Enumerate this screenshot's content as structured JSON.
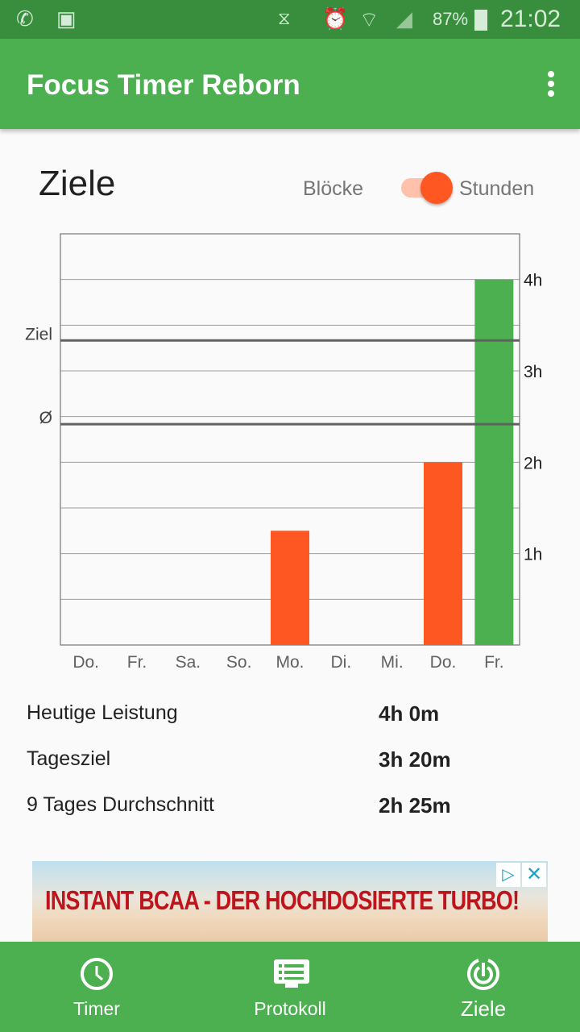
{
  "status_bar": {
    "battery": "87%",
    "time": "21:02",
    "icons": [
      "whatsapp-icon",
      "gallery-icon",
      "vibrate-icon",
      "alarm-icon",
      "wifi-icon",
      "signal-icon",
      "battery-icon"
    ]
  },
  "app_bar": {
    "title": "Focus Timer Reborn",
    "menu_icon": "more-vert-icon"
  },
  "page": {
    "title": "Ziele",
    "toggle": {
      "left_label": "Blöcke",
      "right_label": "Stunden",
      "state": "Stunden"
    }
  },
  "chart_data": {
    "type": "bar",
    "categories": [
      "Do.",
      "Fr.",
      "Sa.",
      "So.",
      "Mo.",
      "Di.",
      "Mi.",
      "Do.",
      "Fr."
    ],
    "values": [
      0,
      0,
      0,
      0,
      1.25,
      0,
      0,
      2,
      4
    ],
    "bar_colors": [
      "#ff5722",
      "#ff5722",
      "#ff5722",
      "#ff5722",
      "#ff5722",
      "#ff5722",
      "#ff5722",
      "#ff5722",
      "#4caf50"
    ],
    "unit": "h",
    "ylim": [
      0,
      4.5
    ],
    "y_ticks": [
      {
        "v": 1,
        "label": "1h"
      },
      {
        "v": 2,
        "label": "2h"
      },
      {
        "v": 3,
        "label": "3h"
      },
      {
        "v": 4,
        "label": "4h"
      }
    ],
    "y_axis_side": "right",
    "grid": true,
    "reference_lines": [
      {
        "label": "Ziel",
        "value": 3.333
      },
      {
        "label": "Ø",
        "value": 2.417
      }
    ]
  },
  "stats": [
    {
      "label": "Heutige Leistung",
      "value": "4h 0m"
    },
    {
      "label": "Tagesziel",
      "value": "3h 20m"
    },
    {
      "label": "9 Tages Durchschnitt",
      "value": "2h 25m"
    }
  ],
  "ad": {
    "text": "INSTANT BCAA - DER HOCHDOSIERTE TURBO!",
    "info_icon": "adchoices-icon",
    "close_icon": "close-icon"
  },
  "bottom_nav": [
    {
      "label": "Timer",
      "icon": "clock-icon"
    },
    {
      "label": "Protokoll",
      "icon": "list-icon"
    },
    {
      "label": "Ziele",
      "icon": "target-icon",
      "active": true
    }
  ],
  "colors": {
    "primary": "#4caf50",
    "primary_dark": "#388e3c",
    "accent": "#ff5722"
  }
}
